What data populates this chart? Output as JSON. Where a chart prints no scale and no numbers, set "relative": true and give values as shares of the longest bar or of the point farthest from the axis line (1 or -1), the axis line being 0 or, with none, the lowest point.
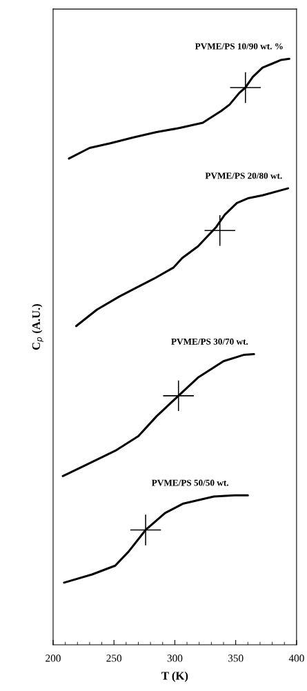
{
  "chart_data": {
    "type": "line",
    "xlabel": "T (K)",
    "ylabel": "C$_{p}$ (A.U.)",
    "relative": true,
    "xlim": [
      200,
      400
    ],
    "xticks": [
      200,
      250,
      300,
      350,
      400
    ],
    "grid": false,
    "legend": false,
    "series": [
      {
        "name": "PVME/PS 10/90 wt. %",
        "color": "#000000",
        "x": [
          213,
          230,
          247,
          266,
          285,
          304,
          323,
          326,
          338,
          345,
          353,
          358,
          364,
          372,
          379,
          387,
          394
        ],
        "values": [
          0.83,
          0.848,
          0.856,
          0.866,
          0.875,
          0.882,
          0.891,
          0.895,
          0.911,
          0.922,
          0.942,
          0.951,
          0.969,
          0.985,
          0.991,
          0.998,
          1.0
        ]
      },
      {
        "name": "PVME/PS 20/80 wt.",
        "color": "#000000",
        "x": [
          219,
          236,
          255,
          283,
          299,
          306,
          319,
          334,
          341,
          351,
          360,
          372,
          393
        ],
        "values": [
          0.544,
          0.572,
          0.595,
          0.625,
          0.644,
          0.66,
          0.68,
          0.713,
          0.734,
          0.754,
          0.762,
          0.767,
          0.779
        ]
      },
      {
        "name": "PVME/PS 30/70 wt.",
        "color": "#000000",
        "x": [
          208,
          228,
          251,
          270,
          285,
          303,
          319,
          340,
          357,
          365
        ],
        "values": [
          0.288,
          0.308,
          0.331,
          0.356,
          0.39,
          0.425,
          0.456,
          0.484,
          0.495,
          0.496
        ]
      },
      {
        "name": "PVME/PS 50/50 wt.",
        "color": "#000000",
        "x": [
          209,
          232,
          251,
          262,
          276,
          292,
          307,
          332,
          349,
          360
        ],
        "values": [
          0.106,
          0.12,
          0.135,
          0.159,
          0.196,
          0.225,
          0.241,
          0.253,
          0.255,
          0.255
        ]
      },
      {
        "type": "scatter",
        "marker": "cross",
        "color": "#000000",
        "x": [
          358,
          337,
          303,
          276
        ],
        "values": [
          0.951,
          0.707,
          0.425,
          0.196
        ]
      }
    ]
  }
}
